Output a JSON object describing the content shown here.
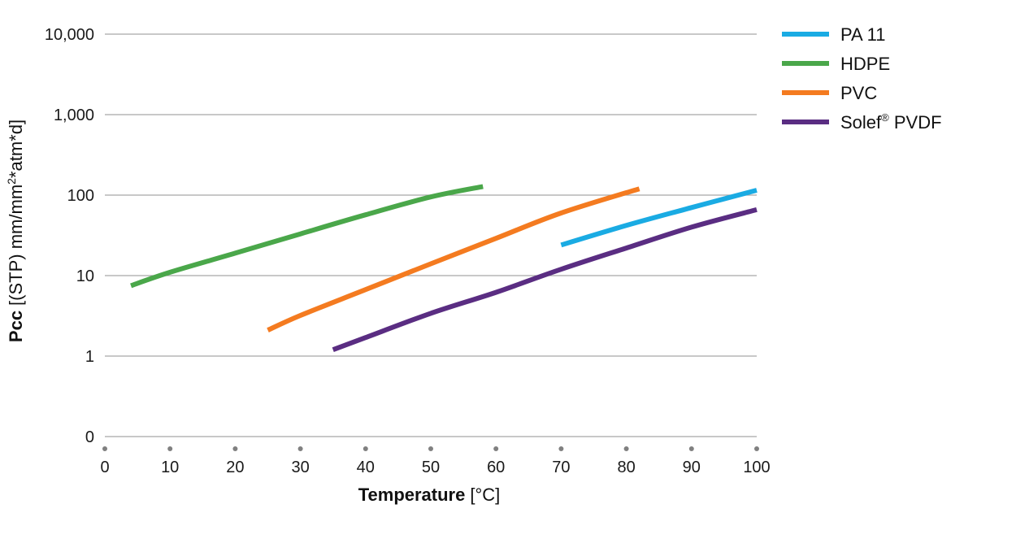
{
  "chart_data": {
    "type": "line",
    "title": "",
    "xlabel": {
      "main": "Temperature",
      "unit": "[°C]"
    },
    "ylabel": {
      "main": "Pcc",
      "unit_prefix": "[(STP) mm/mm",
      "unit_sup": "2",
      "unit_suffix": "*atm*d]"
    },
    "xlim": [
      0,
      100
    ],
    "x_ticks": [
      0,
      10,
      20,
      30,
      40,
      50,
      60,
      70,
      80,
      90,
      100
    ],
    "x_tick_labels": [
      "0",
      "10",
      "20",
      "30",
      "40",
      "50",
      "60",
      "70",
      "80",
      "90",
      "100"
    ],
    "y_scale": "log",
    "y_ticks": [
      0,
      1,
      10,
      100,
      1000,
      10000
    ],
    "y_tick_labels": [
      "0",
      "1",
      "10",
      "100",
      "1,000",
      "10,000"
    ],
    "grid": "horizontal",
    "legend_position": "top-right",
    "series": [
      {
        "name": "PA 11",
        "color": "#1aabe3",
        "x": [
          70,
          80,
          90,
          100
        ],
        "y": [
          24,
          42,
          70,
          115
        ]
      },
      {
        "name": "HDPE",
        "color": "#4aa74a",
        "x": [
          4,
          10,
          20,
          30,
          40,
          50,
          58
        ],
        "y": [
          7.5,
          11,
          19,
          33,
          57,
          95,
          128
        ]
      },
      {
        "name": "PVC",
        "color": "#f47b20",
        "x": [
          25,
          30,
          40,
          50,
          60,
          70,
          82
        ],
        "y": [
          2.1,
          3.2,
          6.7,
          14,
          29,
          60,
          120
        ]
      },
      {
        "name": "Solef",
        "name_sup": "®",
        "name_suffix": " PVDF",
        "color": "#5a2d82",
        "x": [
          35,
          40,
          50,
          60,
          70,
          80,
          90,
          100
        ],
        "y": [
          1.2,
          1.7,
          3.4,
          6.2,
          12,
          22,
          40,
          66
        ]
      }
    ]
  }
}
